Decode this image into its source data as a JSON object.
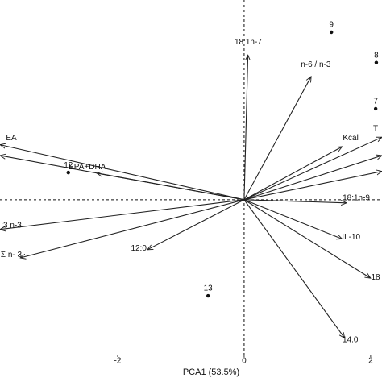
{
  "chart_data": {
    "type": "biplot",
    "xlabel": "PCA1 (53.5%)",
    "xlim": [
      -3.86,
      2.18
    ],
    "ylim": [
      -2.45,
      3.16
    ],
    "xticks": [
      -2,
      0,
      2
    ],
    "point_color": "#111111",
    "arrow_color": "#222222",
    "points": {
      "labels": [
        "9",
        "8",
        "7",
        "12",
        "13"
      ],
      "x": [
        1.38,
        2.09,
        2.08,
        -2.78,
        -0.57
      ],
      "y": [
        2.65,
        2.17,
        1.44,
        0.43,
        -1.52
      ]
    },
    "loadings": {
      "labels": [
        "18:1n-7",
        "n-6 / n-3",
        "Kcal",
        "T",
        null,
        null,
        "18:1n-9",
        "IL-10",
        "18",
        "14:0",
        "12:0",
        "Σ n- 3",
        ":3 n-3",
        "EPA+DHA",
        "EA",
        null
      ],
      "x": [
        0.06,
        1.06,
        1.55,
        2.18,
        2.18,
        2.18,
        1.62,
        1.55,
        2.0,
        1.59,
        -1.53,
        -3.54,
        -3.86,
        -2.33,
        -3.86,
        -3.86
      ],
      "y": [
        2.29,
        1.95,
        0.84,
        0.99,
        0.7,
        0.45,
        -0.05,
        -0.62,
        -1.24,
        -2.19,
        -0.79,
        -0.92,
        -0.47,
        0.42,
        0.87,
        0.7
      ]
    }
  }
}
